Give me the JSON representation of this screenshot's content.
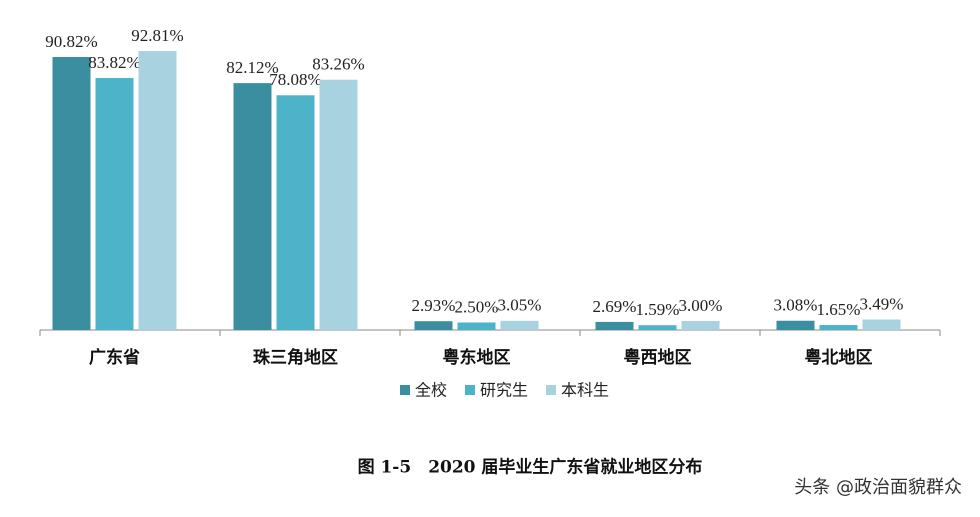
{
  "chart_data": {
    "type": "bar",
    "caption": "图 1-5　2020 届毕业生广东省就业地区分布",
    "watermark": "头条 @政治面貌群众",
    "categories": [
      "广东省",
      "珠三角地区",
      "粤东地区",
      "粤西地区",
      "粤北地区"
    ],
    "series": [
      {
        "name": "全校",
        "color": "#3a8e9f",
        "values": [
          90.82,
          82.12,
          2.93,
          2.69,
          3.08
        ],
        "value_labels": [
          "90.82%",
          "82.12%",
          "2.93%",
          "2.69%",
          "3.08%"
        ]
      },
      {
        "name": "研究生",
        "color": "#4db3c8",
        "values": [
          83.82,
          78.08,
          2.5,
          1.59,
          1.65
        ],
        "value_labels": [
          "83.82%",
          "78.08%",
          "2.50%",
          "1.59%",
          "1.65%"
        ]
      },
      {
        "name": "本科生",
        "color": "#a8d2df",
        "values": [
          92.81,
          83.26,
          3.05,
          3.0,
          3.49
        ],
        "value_labels": [
          "92.81%",
          "83.26%",
          "3.05%",
          "3.00%",
          "3.49%"
        ]
      }
    ]
  }
}
